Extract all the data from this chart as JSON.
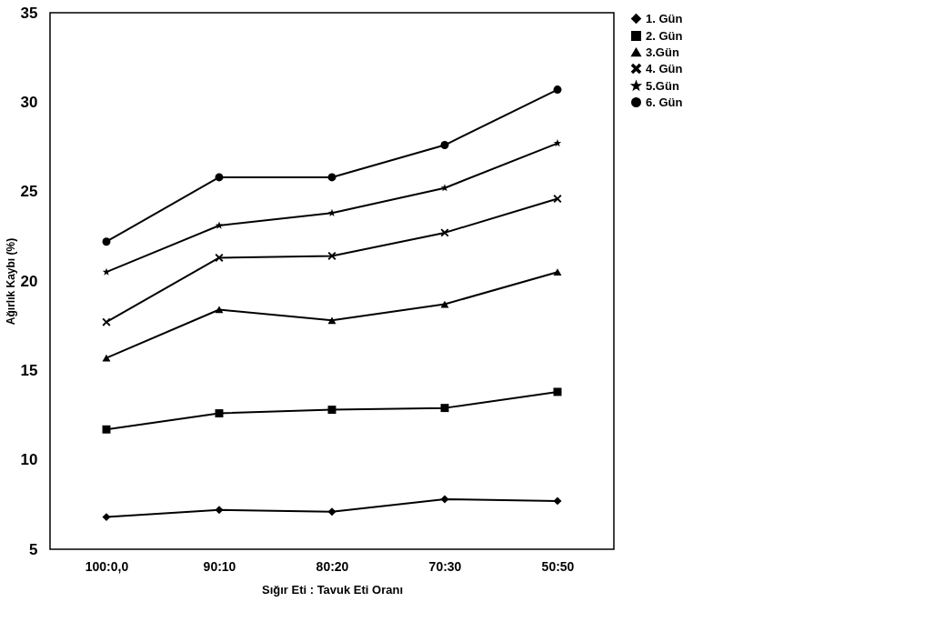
{
  "chart_data": {
    "type": "line",
    "xlabel": "Sığır Eti : Tavuk Eti Oranı",
    "ylabel": "Ağırlık Kaybı (%)",
    "categories": [
      "100:0,0",
      "90:10",
      "80:20",
      "70:30",
      "50:50"
    ],
    "ylim": [
      5,
      35
    ],
    "yticks": [
      5,
      10,
      15,
      20,
      25,
      30,
      35
    ],
    "grid": false,
    "legend": "right",
    "series": [
      {
        "name": "1. Gün",
        "color": "#000000",
        "marker": "diamond",
        "values": [
          6.8,
          7.2,
          7.1,
          7.8,
          7.7
        ]
      },
      {
        "name": "2. Gün",
        "color": "#000000",
        "marker": "square",
        "values": [
          11.7,
          12.6,
          12.8,
          12.9,
          13.8
        ]
      },
      {
        "name": "3.Gün",
        "color": "#000000",
        "marker": "triangle",
        "values": [
          15.7,
          18.4,
          17.8,
          18.7,
          20.5
        ]
      },
      {
        "name": "4. Gün",
        "color": "#000000",
        "marker": "cross",
        "values": [
          17.7,
          21.3,
          21.4,
          22.7,
          24.6
        ]
      },
      {
        "name": "5.Gün",
        "color": "#000000",
        "marker": "star",
        "values": [
          20.5,
          23.1,
          23.8,
          25.2,
          27.7
        ]
      },
      {
        "name": "6. Gün",
        "color": "#000000",
        "marker": "circle",
        "values": [
          22.2,
          25.8,
          25.8,
          27.6,
          30.7
        ]
      }
    ]
  }
}
